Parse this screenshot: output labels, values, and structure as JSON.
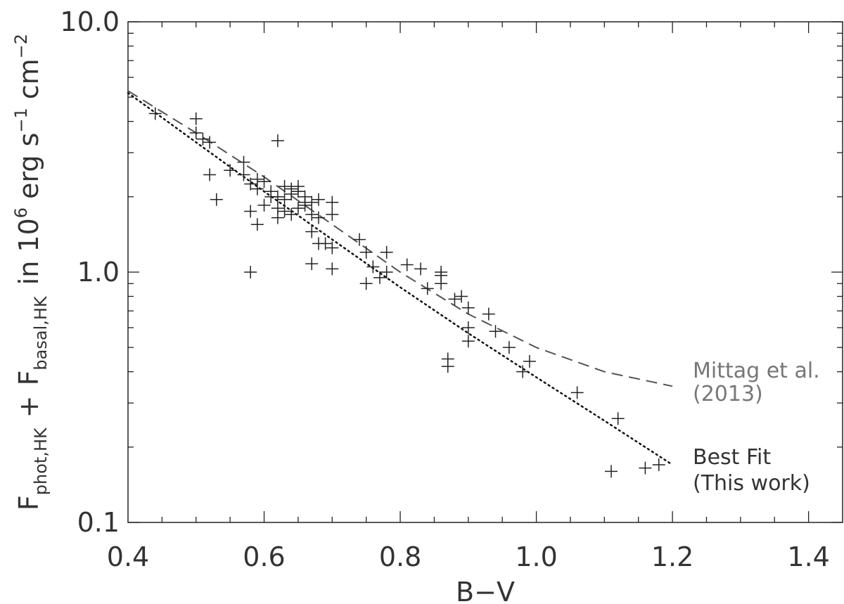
{
  "chart_data": {
    "type": "scatter",
    "title": "",
    "xlabel": "B−V",
    "ylabel_parts": {
      "f1": "F",
      "sub1": "phot,HK",
      "plus": "+",
      "f2": "F",
      "sub2": "basal,HK",
      "unit_a": "in 10",
      "exp6": "6",
      "unit_b": "erg s",
      "exp_s": "−1",
      "unit_c": "cm",
      "exp_cm": "−2"
    },
    "xlim": [
      0.4,
      1.45
    ],
    "ylim": [
      0.1,
      10.0
    ],
    "yscale": "log",
    "xticks": [
      0.4,
      0.6,
      0.8,
      1.0,
      1.2,
      1.4
    ],
    "xtick_labels": [
      "0.4",
      "0.6",
      "0.8",
      "1.0",
      "1.2",
      "1.4"
    ],
    "yticks": [
      0.1,
      1.0,
      10.0
    ],
    "ytick_labels": [
      "0.1",
      "1.0",
      "10.0"
    ],
    "grid": false,
    "series": [
      {
        "marker": "plus",
        "color": "#222222",
        "points": [
          [
            0.44,
            4.3
          ],
          [
            0.5,
            4.1
          ],
          [
            0.5,
            3.6
          ],
          [
            0.51,
            3.4
          ],
          [
            0.52,
            3.3
          ],
          [
            0.52,
            2.45
          ],
          [
            0.53,
            1.95
          ],
          [
            0.55,
            2.55
          ],
          [
            0.57,
            2.75
          ],
          [
            0.57,
            2.45
          ],
          [
            0.58,
            2.25
          ],
          [
            0.58,
            1.75
          ],
          [
            0.58,
            1.0
          ],
          [
            0.59,
            2.35
          ],
          [
            0.59,
            2.15
          ],
          [
            0.59,
            1.55
          ],
          [
            0.6,
            2.3
          ],
          [
            0.6,
            1.85
          ],
          [
            0.61,
            2.1
          ],
          [
            0.61,
            2.0
          ],
          [
            0.62,
            3.35
          ],
          [
            0.62,
            2.0
          ],
          [
            0.62,
            1.8
          ],
          [
            0.62,
            1.65
          ],
          [
            0.63,
            2.2
          ],
          [
            0.63,
            1.95
          ],
          [
            0.63,
            1.75
          ],
          [
            0.64,
            2.15
          ],
          [
            0.64,
            2.05
          ],
          [
            0.64,
            1.7
          ],
          [
            0.65,
            2.2
          ],
          [
            0.65,
            2.1
          ],
          [
            0.65,
            1.8
          ],
          [
            0.66,
            2.0
          ],
          [
            0.66,
            1.9
          ],
          [
            0.66,
            1.85
          ],
          [
            0.67,
            1.9
          ],
          [
            0.67,
            1.7
          ],
          [
            0.67,
            1.45
          ],
          [
            0.67,
            1.08
          ],
          [
            0.68,
            1.95
          ],
          [
            0.68,
            1.65
          ],
          [
            0.68,
            1.3
          ],
          [
            0.69,
            1.3
          ],
          [
            0.7,
            1.9
          ],
          [
            0.7,
            1.7
          ],
          [
            0.7,
            1.25
          ],
          [
            0.7,
            1.03
          ],
          [
            0.74,
            1.35
          ],
          [
            0.75,
            1.2
          ],
          [
            0.75,
            0.9
          ],
          [
            0.76,
            1.05
          ],
          [
            0.77,
            0.95
          ],
          [
            0.78,
            1.0
          ],
          [
            0.78,
            1.2
          ],
          [
            0.81,
            1.07
          ],
          [
            0.83,
            1.03
          ],
          [
            0.84,
            0.86
          ],
          [
            0.86,
            1.0
          ],
          [
            0.86,
            0.97
          ],
          [
            0.86,
            0.9
          ],
          [
            0.87,
            0.45
          ],
          [
            0.87,
            0.42
          ],
          [
            0.88,
            0.78
          ],
          [
            0.89,
            0.8
          ],
          [
            0.9,
            0.72
          ],
          [
            0.9,
            0.6
          ],
          [
            0.9,
            0.53
          ],
          [
            0.93,
            0.68
          ],
          [
            0.94,
            0.58
          ],
          [
            0.96,
            0.5
          ],
          [
            0.98,
            0.4
          ],
          [
            0.99,
            0.44
          ],
          [
            1.06,
            0.33
          ],
          [
            1.11,
            0.16
          ],
          [
            1.12,
            0.26
          ],
          [
            1.16,
            0.165
          ],
          [
            1.18,
            0.17
          ]
        ]
      }
    ],
    "curves": [
      {
        "name": "Mittag et al. (2013)",
        "style": "dashed",
        "color": "#555555",
        "x": [
          0.4,
          0.5,
          0.6,
          0.7,
          0.8,
          0.9,
          1.0,
          1.1,
          1.2
        ],
        "y": [
          5.3,
          3.6,
          2.4,
          1.55,
          1.0,
          0.68,
          0.5,
          0.4,
          0.35
        ]
      },
      {
        "name": "Best Fit (This work)",
        "style": "dotted",
        "color": "#111111",
        "x": [
          0.4,
          0.5,
          0.6,
          0.7,
          0.8,
          0.9,
          1.0,
          1.1,
          1.2
        ],
        "y": [
          5.2,
          3.3,
          2.1,
          1.35,
          0.87,
          0.57,
          0.38,
          0.255,
          0.17
        ]
      }
    ],
    "annotations": [
      {
        "lines": [
          "Mittag et al.",
          "(2013)"
        ],
        "color": "#777777"
      },
      {
        "lines": [
          "Best Fit",
          "(This work)"
        ],
        "color": "#333333"
      }
    ]
  }
}
